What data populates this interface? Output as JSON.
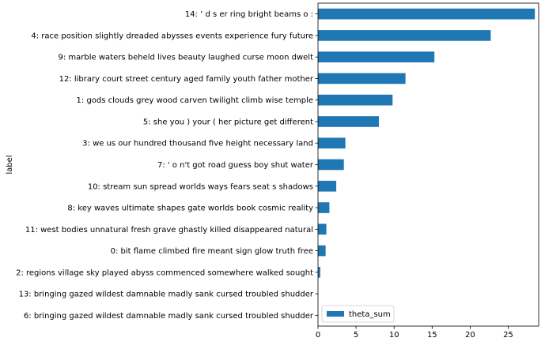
{
  "chart_data": {
    "type": "bar",
    "orientation": "horizontal",
    "ylabel": "label",
    "xlabel": "",
    "xlim": [
      0,
      29
    ],
    "x_ticks": [
      0,
      5,
      10,
      15,
      20,
      25
    ],
    "grid": false,
    "legend_position": "bottom-right",
    "categories": [
      "6: bringing gazed wildest damnable madly sank cursed troubled shudder",
      "13: bringing gazed wildest damnable madly sank cursed troubled shudder",
      "2: regions village sky played abyss commenced somewhere walked sought",
      "0: bit flame climbed fire meant sign glow truth free",
      "11: west bodies unnatural fresh grave ghastly killed disappeared natural",
      "8: key waves ultimate shapes gate worlds book cosmic reality",
      "10: stream sun spread worlds ways fears seat s shadows",
      "7: ' o n't got road guess boy shut water",
      "3: we us our hundred thousand five height necessary land",
      "5: she you ) your ( her picture get different",
      "1: gods clouds grey wood carven twilight climb wise temple",
      "12: library court street century aged family youth father mother",
      "9: marble waters beheld lives beauty laughed curse moon dwelt",
      "4: race position slightly dreaded abysses events experience fury future",
      "14: ’ d s er ring bright beams o :"
    ],
    "series": [
      {
        "name": "theta_sum",
        "color": "#1f77b4",
        "values": [
          0.0,
          0.0,
          0.3,
          1.0,
          1.1,
          1.5,
          2.4,
          3.4,
          3.6,
          8.0,
          9.8,
          11.5,
          15.3,
          22.7,
          28.5
        ]
      }
    ]
  }
}
